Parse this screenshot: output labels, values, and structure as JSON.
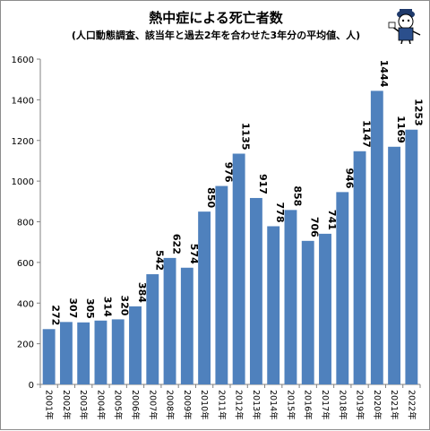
{
  "chart_data": {
    "type": "bar",
    "title": "熱中症による死亡者数",
    "subtitle": "(人口動態調査、該当年と過去2年を合わせた3年分の平均値、人)",
    "xlabel": "",
    "ylabel": "",
    "ylim": [
      0,
      1600
    ],
    "yticks": [
      0,
      200,
      400,
      600,
      800,
      1000,
      1200,
      1400,
      1600
    ],
    "grid": false,
    "legend": "none",
    "bar_color": "#4f81bd",
    "categories": [
      "2001年",
      "2002年",
      "2003年",
      "2004年",
      "2005年",
      "2006年",
      "2007年",
      "2008年",
      "2009年",
      "2010年",
      "2011年",
      "2012年",
      "2013年",
      "2014年",
      "2015年",
      "2016年",
      "2017年",
      "2018年",
      "2019年",
      "2020年",
      "2021年",
      "2022年"
    ],
    "values": [
      272,
      307,
      305,
      314,
      320,
      384,
      542,
      622,
      574,
      850,
      976,
      1135,
      917,
      778,
      858,
      706,
      741,
      946,
      1147,
      1444,
      1169,
      1253
    ],
    "value_labels": [
      "272",
      "307",
      "305",
      "314",
      "320",
      "384",
      "542",
      "622",
      "574",
      "850",
      "976",
      "1135",
      "917",
      "778",
      "858",
      "706",
      "741",
      "946",
      "1147",
      "1444",
      "1169",
      "1253"
    ]
  },
  "decoration": {
    "icon": "mascot-icon"
  }
}
